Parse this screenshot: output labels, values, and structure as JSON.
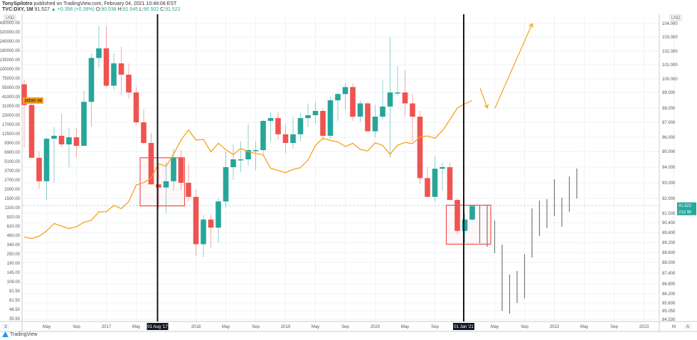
{
  "header": {
    "author": "TonySpilotro",
    "published_text": "published on TradingView.com, February 04, 2021 10:48:08 EST",
    "symbol": "TVC:DXY, 1M",
    "last": "91.527",
    "change_icon": "triangle-up-icon",
    "change": "+0.356 (+0.39%)",
    "o_label": "O:",
    "o": "90.538",
    "h_label": "H:",
    "h": "91.545",
    "l_label": "L:",
    "l": "90.502",
    "c_label": "C:",
    "c": "91.522"
  },
  "footer": {
    "logo_text": "TradingView"
  },
  "colors": {
    "up": "#26a69a",
    "down": "#ef5350",
    "overlay_line": "#f7a21b",
    "box": "#ef5350",
    "marker_line": "#131722",
    "ghost_bar": "#787878"
  },
  "chart_data": {
    "type": "candlestick",
    "interval": "1M",
    "right_axis": {
      "unit": "USD",
      "scale": "log",
      "ticks": [
        "104.000",
        "103.000",
        "102.000",
        "101.000",
        "100.000",
        "99.000",
        "98.000",
        "97.000",
        "96.000",
        "95.000",
        "94.000",
        "93.000",
        "92.000",
        "91.000",
        "90.400",
        "89.800",
        "89.200",
        "88.600",
        "88.000",
        "87.400",
        "86.800",
        "86.200",
        "85.600",
        "85.050",
        "84.530"
      ],
      "tick_values": [
        104,
        103,
        102,
        101,
        100,
        99,
        98,
        97,
        96,
        95,
        94,
        93,
        92,
        91,
        90.4,
        89.8,
        89.2,
        88.6,
        88,
        87.4,
        86.8,
        86.2,
        85.6,
        85.05,
        84.53
      ],
      "price_badge": "91.522",
      "countdown_badge": "22d 9h"
    },
    "left_axis": {
      "unit": "USD",
      "scale": "log",
      "ticks": [
        "430000.00",
        "320000.00",
        "240000.00",
        "180000.00",
        "135000.00",
        "100000.00",
        "75000.00",
        "55000.00",
        "41000.00",
        "31000.00",
        "23000.00",
        "17000.00",
        "12500.00",
        "9300.00",
        "6900.00",
        "5100.00",
        "3700.00",
        "2700.00",
        "2000.00",
        "1500.00",
        "1100.00",
        "820.00",
        "620.00",
        "460.00",
        "340.00",
        "250.00",
        "190.00",
        "145.00",
        "109.00",
        "81.50",
        "61.50",
        "46.50",
        "35.50"
      ],
      "tick_values": [
        430000,
        320000,
        240000,
        180000,
        135000,
        100000,
        75000,
        55000,
        41000,
        31000,
        23000,
        17000,
        12500,
        9300,
        6900,
        5100,
        3700,
        2700,
        2000,
        1500,
        1100,
        820,
        620,
        460,
        340,
        250,
        190,
        145,
        109,
        81.5,
        61.5,
        46.5,
        35.5
      ],
      "price_badge": "36590.96"
    },
    "x_axis": {
      "labels": [
        {
          "text": "May",
          "date": "2016-05"
        },
        {
          "text": "Sep",
          "date": "2016-09"
        },
        {
          "text": "2017",
          "date": "2017-01"
        },
        {
          "text": "May",
          "date": "2017-05"
        },
        {
          "text": "2018",
          "date": "2018-01"
        },
        {
          "text": "May",
          "date": "2018-05"
        },
        {
          "text": "Sep",
          "date": "2018-09"
        },
        {
          "text": "2019",
          "date": "2019-01"
        },
        {
          "text": "May",
          "date": "2019-05"
        },
        {
          "text": "Sep",
          "date": "2019-09"
        },
        {
          "text": "2020",
          "date": "2020-01"
        },
        {
          "text": "May",
          "date": "2020-05"
        },
        {
          "text": "Sep",
          "date": "2020-09"
        },
        {
          "text": "May",
          "date": "2021-05"
        },
        {
          "text": "Sep",
          "date": "2021-09"
        },
        {
          "text": "2022",
          "date": "2022-01"
        },
        {
          "text": "May",
          "date": "2022-05"
        },
        {
          "text": "Sep",
          "date": "2022-09"
        },
        {
          "text": "2023",
          "date": "2023-01"
        },
        {
          "text": "M",
          "date": "2023-05"
        }
      ],
      "markers": [
        {
          "text": "01 Aug '17",
          "date": "2017-08"
        },
        {
          "text": "01 Jan '21",
          "date": "2021-01"
        }
      ],
      "left_button": "2",
      "right_button": "A"
    },
    "candles_start": "2016-02",
    "candles_ohlc": [
      [
        99.6,
        99.9,
        95.3,
        98.2
      ],
      [
        98.2,
        98.6,
        94.6,
        94.6
      ],
      [
        94.6,
        95.0,
        92.6,
        93.1
      ],
      [
        93.1,
        96.0,
        91.9,
        95.9
      ],
      [
        95.9,
        96.7,
        93.0,
        96.1
      ],
      [
        96.1,
        97.6,
        95.3,
        95.5
      ],
      [
        95.5,
        96.6,
        94.0,
        96.0
      ],
      [
        96.0,
        96.6,
        94.6,
        95.4
      ],
      [
        95.4,
        99.1,
        95.4,
        98.4
      ],
      [
        98.4,
        101.8,
        96.7,
        101.5
      ],
      [
        101.5,
        103.8,
        100.8,
        102.2
      ],
      [
        102.2,
        103.8,
        99.4,
        99.5
      ],
      [
        99.5,
        101.8,
        99.2,
        101.1
      ],
      [
        101.1,
        102.3,
        98.8,
        100.3
      ],
      [
        100.3,
        101.1,
        98.6,
        99.0
      ],
      [
        99.0,
        99.4,
        96.8,
        97.0
      ],
      [
        97.0,
        97.9,
        95.5,
        95.6
      ],
      [
        95.6,
        96.3,
        92.9,
        92.9
      ],
      [
        92.9,
        94.1,
        91.3,
        92.7
      ],
      [
        92.7,
        94.3,
        91.0,
        93.1
      ],
      [
        93.1,
        95.2,
        92.5,
        94.6
      ],
      [
        94.6,
        95.1,
        92.5,
        93.0
      ],
      [
        93.0,
        94.2,
        91.8,
        92.1
      ],
      [
        92.1,
        92.6,
        88.4,
        89.1
      ],
      [
        89.1,
        90.9,
        88.3,
        90.6
      ],
      [
        90.6,
        90.9,
        88.9,
        90.1
      ],
      [
        90.1,
        92.0,
        89.2,
        91.8
      ],
      [
        91.8,
        95.0,
        91.4,
        94.0
      ],
      [
        94.0,
        95.5,
        93.2,
        94.5
      ],
      [
        94.5,
        95.7,
        93.7,
        94.5
      ],
      [
        94.5,
        96.9,
        94.1,
        95.1
      ],
      [
        95.1,
        95.7,
        93.8,
        95.1
      ],
      [
        95.1,
        97.2,
        94.8,
        97.1
      ],
      [
        97.1,
        97.7,
        95.7,
        97.3
      ],
      [
        97.3,
        97.7,
        95.8,
        96.2
      ],
      [
        96.2,
        96.9,
        94.9,
        95.6
      ],
      [
        95.6,
        97.4,
        95.2,
        96.2
      ],
      [
        96.2,
        97.7,
        95.7,
        97.3
      ],
      [
        97.3,
        98.3,
        96.7,
        97.5
      ],
      [
        97.5,
        98.4,
        96.9,
        97.8
      ],
      [
        97.8,
        98.0,
        95.8,
        96.1
      ],
      [
        96.1,
        98.7,
        95.9,
        98.5
      ],
      [
        98.5,
        99.0,
        97.1,
        98.9
      ],
      [
        98.9,
        99.7,
        97.9,
        99.4
      ],
      [
        99.4,
        99.7,
        97.1,
        97.4
      ],
      [
        97.4,
        98.5,
        97.0,
        98.3
      ],
      [
        98.3,
        98.4,
        96.4,
        96.4
      ],
      [
        96.4,
        98.2,
        96.0,
        97.4
      ],
      [
        97.4,
        99.9,
        97.2,
        98.1
      ],
      [
        98.1,
        103.0,
        94.6,
        99.0
      ],
      [
        99.0,
        100.9,
        98.8,
        99.0
      ],
      [
        99.0,
        100.6,
        97.4,
        98.3
      ],
      [
        98.3,
        98.9,
        95.7,
        97.4
      ],
      [
        97.4,
        97.8,
        92.9,
        93.3
      ],
      [
        93.3,
        94.0,
        92.1,
        92.1
      ],
      [
        92.1,
        94.7,
        91.8,
        93.9
      ],
      [
        93.9,
        94.3,
        92.5,
        94.0
      ],
      [
        94.0,
        94.3,
        91.9,
        91.9
      ],
      [
        91.9,
        92.0,
        89.7,
        89.9
      ],
      [
        89.9,
        91.0,
        89.2,
        90.6
      ],
      [
        90.6,
        91.5,
        90.5,
        91.5
      ]
    ],
    "projected_bars_start": "2021-03",
    "projected_bars_hl": [
      [
        91.52,
        89.16
      ],
      [
        91.52,
        88.94
      ],
      [
        90.54,
        88.56
      ],
      [
        89.07,
        85.05
      ],
      [
        87.32,
        84.87
      ],
      [
        87.52,
        85.6
      ],
      [
        88.5,
        85.9
      ],
      [
        91.33,
        88.3
      ],
      [
        91.86,
        89.59
      ],
      [
        91.95,
        90.06
      ],
      [
        93.23,
        90.82
      ],
      [
        92.05,
        90.15
      ],
      [
        93.41,
        91.1
      ],
      [
        93.91,
        92.0
      ]
    ],
    "overlay_series": {
      "axis": "left",
      "start": "2016-02",
      "values": [
        437,
        416,
        448,
        531,
        673,
        624,
        575,
        609,
        698,
        742,
        963,
        970,
        1190,
        1071,
        1348,
        2286,
        2480,
        2875,
        4703,
        4338,
        6468,
        10233,
        14156,
        10221,
        10397,
        6973,
        9240,
        7494,
        6404,
        7780,
        7037,
        6625,
        6317,
        4017,
        3742,
        3457,
        3854,
        4105,
        5350,
        8574,
        10817,
        10085,
        9630,
        8293,
        9199,
        7569,
        7193,
        9350,
        8599,
        6438,
        8658,
        9461,
        9137,
        11351,
        11655,
        10779,
        13804,
        19714,
        28990,
        33114,
        36590.96
      ]
    },
    "annotations": {
      "boxes": [
        {
          "from": "2017-06",
          "to": "2017-11",
          "high": 94.6,
          "low": 91.5
        },
        {
          "from": "2020-11",
          "to": "2021-04",
          "high": 91.55,
          "low": 89.1
        }
      ],
      "arrows": [
        {
          "direction": "down",
          "from": [
            "2021-04",
            99.3
          ],
          "to": [
            "2021-05",
            98.0
          ]
        },
        {
          "direction": "up",
          "from": [
            "2021-06",
            98.0
          ],
          "to": [
            "2021-11",
            104.0
          ]
        }
      ]
    }
  }
}
